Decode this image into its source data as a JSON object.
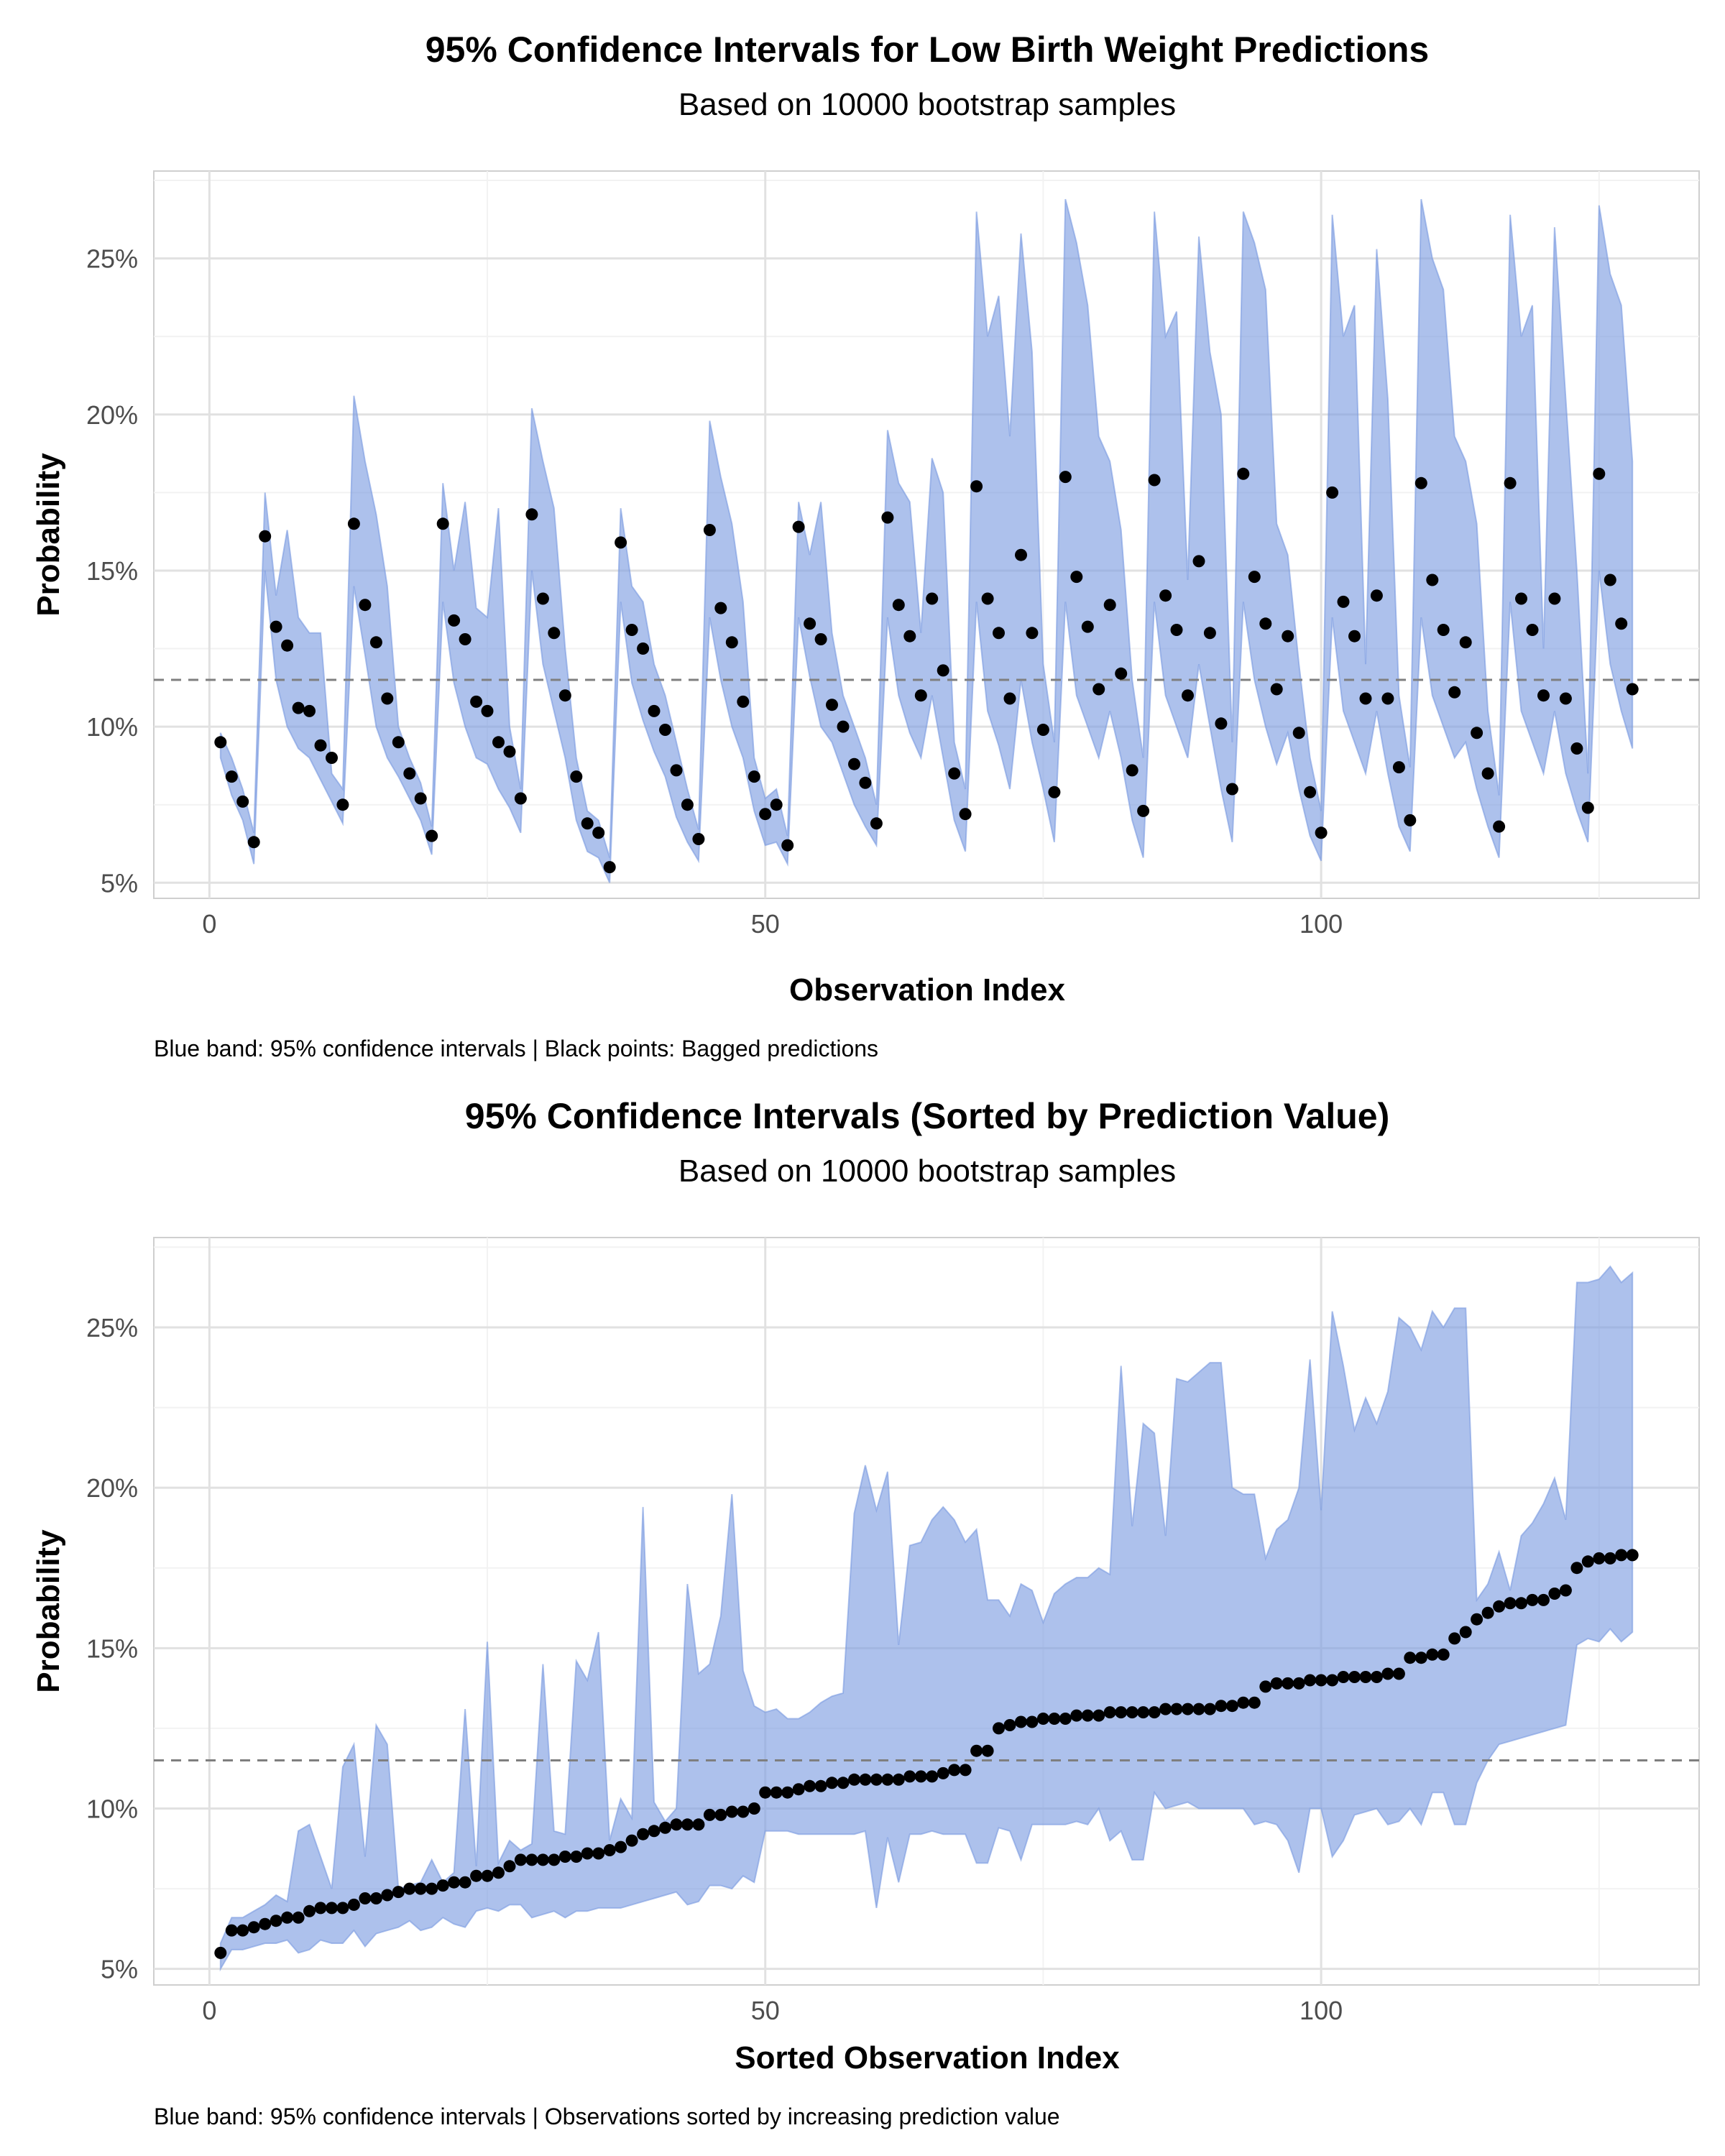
{
  "colors": {
    "band": "#7B9BE0",
    "point": "#000000",
    "refline": "#7f7f7f",
    "grid_major": "#e1e1e1",
    "grid_minor": "#f2f2f2",
    "panel_border": "#cfcfcf",
    "axis_text": "#4d4d4d"
  },
  "chart_data": [
    {
      "type": "area",
      "title": "95% Confidence Intervals for Low Birth Weight Predictions",
      "subtitle": "Based on 10000 bootstrap samples",
      "xlabel": "Observation Index",
      "ylabel": "Probability",
      "caption": "Blue band: 95% confidence intervals | Black points: Bagged predictions",
      "xlim": [
        -5,
        134
      ],
      "ylim": [
        4.5,
        27.8
      ],
      "x_ticks": [
        0,
        50,
        100
      ],
      "y_ticks": [
        5,
        10,
        15,
        20,
        25
      ],
      "y_tick_labels": [
        "5%",
        "10%",
        "15%",
        "20%",
        "25%"
      ],
      "reference_line": 11.5,
      "grid": true,
      "x": [
        1,
        2,
        3,
        4,
        5,
        6,
        7,
        8,
        9,
        10,
        11,
        12,
        13,
        14,
        15,
        16,
        17,
        18,
        19,
        20,
        21,
        22,
        23,
        24,
        25,
        26,
        27,
        28,
        29,
        30,
        31,
        32,
        33,
        34,
        35,
        36,
        37,
        38,
        39,
        40,
        41,
        42,
        43,
        44,
        45,
        46,
        47,
        48,
        49,
        50,
        51,
        52,
        53,
        54,
        55,
        56,
        57,
        58,
        59,
        60,
        61,
        62,
        63,
        64,
        65,
        66,
        67,
        68,
        69,
        70,
        71,
        72,
        73,
        74,
        75,
        76,
        77,
        78,
        79,
        80,
        81,
        82,
        83,
        84,
        85,
        86,
        87,
        88,
        89,
        90,
        91,
        92,
        93,
        94,
        95,
        96,
        97,
        98,
        99,
        100,
        101,
        102,
        103,
        104,
        105,
        106,
        107,
        108,
        109,
        110,
        111,
        112,
        113,
        114,
        115,
        116,
        117,
        118,
        119,
        120,
        121,
        122,
        123,
        124,
        125,
        126,
        127,
        128
      ],
      "prediction": [
        9.5,
        8.4,
        7.6,
        6.3,
        16.1,
        13.2,
        12.6,
        10.6,
        10.5,
        9.4,
        9.0,
        7.5,
        16.5,
        13.9,
        12.7,
        10.9,
        9.5,
        8.5,
        7.7,
        6.5,
        16.5,
        13.4,
        12.8,
        10.8,
        10.5,
        9.5,
        9.2,
        7.7,
        16.8,
        14.1,
        13.0,
        11.0,
        8.4,
        6.9,
        6.6,
        5.5,
        15.9,
        13.1,
        12.5,
        10.5,
        9.9,
        8.6,
        7.5,
        6.4,
        16.3,
        13.8,
        12.7,
        10.8,
        8.4,
        7.2,
        7.5,
        6.2,
        16.4,
        13.3,
        12.8,
        10.7,
        10.0,
        8.8,
        8.2,
        6.9,
        16.7,
        13.9,
        12.9,
        11.0,
        14.1,
        11.8,
        8.5,
        7.2,
        17.7,
        14.1,
        13.0,
        10.9,
        15.5,
        13.0,
        9.9,
        7.9,
        18.0,
        14.8,
        13.2,
        11.2,
        13.9,
        11.7,
        8.6,
        7.3,
        17.9,
        14.2,
        13.1,
        11.0,
        15.3,
        13.0,
        10.1,
        8.0,
        18.1,
        14.8,
        13.3,
        11.2,
        12.9,
        9.8,
        7.9,
        6.6,
        17.5,
        14.0,
        12.9,
        10.9,
        14.2,
        10.9,
        8.7,
        7.0,
        17.8,
        14.7,
        13.1,
        11.1,
        12.7,
        9.8,
        8.5,
        6.8,
        17.8,
        14.1,
        13.1,
        11.0,
        14.1,
        10.9,
        9.3,
        7.4,
        18.1,
        14.7,
        13.3,
        11.2
      ],
      "lower": [
        9.0,
        7.8,
        7.0,
        5.6,
        15.0,
        11.5,
        10.0,
        9.3,
        9.0,
        8.3,
        7.6,
        6.9,
        14.5,
        12.3,
        10.0,
        9.0,
        8.4,
        7.7,
        7.0,
        5.9,
        14.0,
        11.4,
        10.0,
        9.0,
        8.8,
        8.0,
        7.4,
        6.6,
        15.0,
        12.0,
        10.5,
        9.0,
        7.0,
        6.0,
        5.8,
        5.0,
        14.0,
        11.4,
        10.2,
        9.2,
        8.4,
        7.1,
        6.3,
        5.7,
        13.5,
        11.5,
        10.0,
        9.0,
        7.3,
        6.2,
        6.3,
        5.6,
        13.5,
        11.6,
        10.0,
        9.5,
        8.5,
        7.5,
        6.8,
        6.2,
        13.5,
        11.0,
        9.8,
        9.0,
        11.0,
        9.0,
        7.0,
        6.0,
        14.0,
        10.5,
        9.4,
        8.0,
        11.5,
        9.5,
        8.0,
        6.3,
        14.0,
        11.0,
        10.0,
        9.0,
        10.5,
        9.0,
        7.0,
        5.8,
        14.0,
        11.0,
        10.0,
        9.0,
        12.0,
        10.0,
        8.0,
        6.3,
        14.0,
        11.5,
        10.0,
        8.8,
        9.8,
        8.0,
        6.5,
        5.7,
        13.5,
        10.5,
        9.5,
        8.5,
        10.5,
        8.5,
        6.8,
        6.0,
        13.5,
        11.0,
        10.0,
        9.0,
        9.5,
        8.0,
        6.8,
        5.8,
        14.0,
        10.5,
        9.5,
        8.5,
        10.5,
        8.5,
        7.3,
        6.3,
        15.0,
        12.0,
        10.5,
        9.3
      ],
      "upper": [
        9.8,
        9.0,
        8.0,
        6.6,
        17.5,
        14.2,
        16.3,
        13.5,
        13.0,
        13.0,
        8.5,
        8.0,
        20.6,
        18.5,
        16.8,
        14.5,
        10.0,
        9.0,
        8.2,
        6.8,
        17.8,
        15.0,
        17.2,
        13.8,
        13.5,
        17.0,
        10.0,
        8.0,
        20.2,
        18.5,
        17.0,
        12.5,
        9.0,
        7.3,
        7.0,
        5.8,
        17.0,
        14.5,
        14.0,
        12.0,
        11.0,
        9.5,
        8.0,
        6.7,
        19.8,
        18.0,
        16.5,
        14.0,
        9.0,
        7.7,
        8.0,
        6.5,
        17.2,
        15.5,
        17.2,
        13.0,
        11.0,
        10.0,
        9.0,
        7.5,
        19.5,
        17.8,
        17.2,
        13.0,
        18.6,
        17.5,
        9.5,
        8.0,
        26.5,
        22.5,
        23.8,
        19.3,
        25.8,
        22.0,
        12.0,
        9.5,
        26.9,
        25.5,
        23.5,
        19.3,
        18.5,
        16.3,
        11.5,
        9.0,
        26.5,
        22.5,
        23.3,
        14.7,
        25.7,
        22.0,
        20.0,
        9.5,
        26.5,
        25.5,
        24.0,
        16.5,
        15.5,
        12.0,
        9.0,
        7.3,
        26.4,
        22.5,
        23.5,
        12.0,
        25.3,
        20.5,
        11.0,
        8.7,
        26.9,
        25.0,
        24.0,
        19.3,
        18.5,
        16.5,
        10.5,
        7.8,
        26.4,
        22.5,
        23.5,
        12.5,
        26.0,
        20.5,
        15.0,
        8.5,
        26.7,
        24.5,
        23.5,
        18.5
      ]
    },
    {
      "type": "area",
      "title": "95% Confidence Intervals (Sorted by Prediction Value)",
      "subtitle": "Based on 10000 bootstrap samples",
      "xlabel": "Sorted Observation Index",
      "ylabel": "Probability",
      "caption": "Blue band: 95% confidence intervals | Observations sorted by increasing prediction value",
      "xlim": [
        -5,
        134
      ],
      "ylim": [
        4.5,
        27.8
      ],
      "x_ticks": [
        0,
        50,
        100
      ],
      "y_ticks": [
        5,
        10,
        15,
        20,
        25
      ],
      "y_tick_labels": [
        "5%",
        "10%",
        "15%",
        "20%",
        "25%"
      ],
      "reference_line": 11.5,
      "grid": true,
      "x": [
        1,
        2,
        3,
        4,
        5,
        6,
        7,
        8,
        9,
        10,
        11,
        12,
        13,
        14,
        15,
        16,
        17,
        18,
        19,
        20,
        21,
        22,
        23,
        24,
        25,
        26,
        27,
        28,
        29,
        30,
        31,
        32,
        33,
        34,
        35,
        36,
        37,
        38,
        39,
        40,
        41,
        42,
        43,
        44,
        45,
        46,
        47,
        48,
        49,
        50,
        51,
        52,
        53,
        54,
        55,
        56,
        57,
        58,
        59,
        60,
        61,
        62,
        63,
        64,
        65,
        66,
        67,
        68,
        69,
        70,
        71,
        72,
        73,
        74,
        75,
        76,
        77,
        78,
        79,
        80,
        81,
        82,
        83,
        84,
        85,
        86,
        87,
        88,
        89,
        90,
        91,
        92,
        93,
        94,
        95,
        96,
        97,
        98,
        99,
        100,
        101,
        102,
        103,
        104,
        105,
        106,
        107,
        108,
        109,
        110,
        111,
        112,
        113,
        114,
        115,
        116,
        117,
        118,
        119,
        120,
        121,
        122,
        123,
        124,
        125,
        126,
        127,
        128
      ],
      "prediction": [
        5.5,
        6.2,
        6.2,
        6.3,
        6.4,
        6.5,
        6.6,
        6.6,
        6.8,
        6.9,
        6.9,
        6.9,
        7.0,
        7.2,
        7.2,
        7.3,
        7.4,
        7.5,
        7.5,
        7.5,
        7.6,
        7.7,
        7.7,
        7.9,
        7.9,
        8.0,
        8.2,
        8.4,
        8.4,
        8.4,
        8.4,
        8.5,
        8.5,
        8.6,
        8.6,
        8.7,
        8.8,
        9.0,
        9.2,
        9.3,
        9.4,
        9.5,
        9.5,
        9.5,
        9.8,
        9.8,
        9.9,
        9.9,
        10.0,
        10.5,
        10.5,
        10.5,
        10.6,
        10.7,
        10.7,
        10.8,
        10.8,
        10.9,
        10.9,
        10.9,
        10.9,
        10.9,
        11.0,
        11.0,
        11.0,
        11.1,
        11.2,
        11.2,
        11.8,
        11.8,
        12.5,
        12.6,
        12.7,
        12.7,
        12.8,
        12.8,
        12.8,
        12.9,
        12.9,
        12.9,
        13.0,
        13.0,
        13.0,
        13.0,
        13.0,
        13.1,
        13.1,
        13.1,
        13.1,
        13.1,
        13.2,
        13.2,
        13.3,
        13.3,
        13.8,
        13.9,
        13.9,
        13.9,
        14.0,
        14.0,
        14.0,
        14.1,
        14.1,
        14.1,
        14.1,
        14.2,
        14.2,
        14.7,
        14.7,
        14.8,
        14.8,
        15.3,
        15.5,
        15.9,
        16.1,
        16.3,
        16.4,
        16.4,
        16.5,
        16.5,
        16.7,
        16.8,
        17.5,
        17.7,
        17.8,
        17.8,
        17.9,
        17.9,
        18.0,
        18.1
      ],
      "lower": [
        5.0,
        5.6,
        5.6,
        5.7,
        5.8,
        5.8,
        5.9,
        5.5,
        5.6,
        5.9,
        5.8,
        5.8,
        6.2,
        5.7,
        6.1,
        6.2,
        6.3,
        6.5,
        6.2,
        6.3,
        6.6,
        6.4,
        6.3,
        6.8,
        6.9,
        6.8,
        7.0,
        7.0,
        6.6,
        6.7,
        6.8,
        6.6,
        6.8,
        6.8,
        6.9,
        6.9,
        6.9,
        7.0,
        7.1,
        7.2,
        7.3,
        7.4,
        7.0,
        7.1,
        7.6,
        7.6,
        7.5,
        7.9,
        7.7,
        9.3,
        9.3,
        9.3,
        9.2,
        9.2,
        9.2,
        9.2,
        9.2,
        9.2,
        9.3,
        6.9,
        9.1,
        7.7,
        9.2,
        9.2,
        9.3,
        9.2,
        9.2,
        9.2,
        8.3,
        8.3,
        9.4,
        9.3,
        8.4,
        9.5,
        9.5,
        9.5,
        9.5,
        9.6,
        9.5,
        10.0,
        9.0,
        9.3,
        8.4,
        8.4,
        10.5,
        10.0,
        10.1,
        10.2,
        10.0,
        10.0,
        10.0,
        10.0,
        10.0,
        9.5,
        9.6,
        9.5,
        9.0,
        8.0,
        10.0,
        10.0,
        8.5,
        9.0,
        9.8,
        9.9,
        10.0,
        9.5,
        9.6,
        10.0,
        9.5,
        10.5,
        10.5,
        9.5,
        9.5,
        10.8,
        11.5,
        12.0,
        12.1,
        12.2,
        12.3,
        12.4,
        12.5,
        12.6,
        15.1,
        15.3,
        15.2,
        15.6,
        15.2,
        15.5
      ],
      "upper": [
        5.8,
        6.6,
        6.6,
        6.8,
        7.0,
        7.3,
        7.1,
        9.3,
        9.5,
        8.5,
        7.5,
        11.3,
        12.0,
        8.5,
        12.6,
        12.0,
        7.5,
        7.6,
        7.7,
        8.4,
        7.7,
        8.0,
        13.1,
        8.2,
        15.2,
        8.3,
        9.0,
        8.7,
        8.9,
        14.5,
        9.3,
        9.2,
        14.6,
        14.0,
        15.5,
        9.0,
        10.3,
        9.7,
        19.4,
        10.2,
        9.6,
        10.0,
        17.0,
        14.2,
        14.5,
        16.0,
        19.8,
        14.3,
        13.2,
        13.0,
        13.1,
        12.8,
        12.8,
        13.0,
        13.3,
        13.5,
        13.6,
        19.2,
        20.7,
        19.3,
        20.5,
        15.1,
        18.2,
        18.3,
        19.0,
        19.4,
        19.0,
        18.3,
        18.7,
        16.5,
        16.5,
        16.0,
        17.0,
        16.8,
        15.8,
        16.7,
        17.0,
        17.2,
        17.2,
        17.5,
        17.3,
        23.8,
        18.8,
        22.0,
        21.7,
        18.5,
        23.4,
        23.3,
        23.6,
        23.9,
        23.9,
        20.0,
        19.8,
        19.8,
        17.8,
        18.7,
        19.0,
        20.0,
        24.0,
        19.3,
        25.5,
        23.8,
        21.8,
        22.8,
        22.0,
        23.0,
        25.3,
        25.0,
        24.3,
        25.5,
        25.0,
        25.6,
        25.6,
        16.5,
        17.0,
        18.0,
        16.8,
        18.5,
        18.9,
        19.5,
        20.3,
        19.0,
        26.4,
        26.4,
        26.5,
        26.9,
        26.4,
        26.7
      ]
    }
  ]
}
